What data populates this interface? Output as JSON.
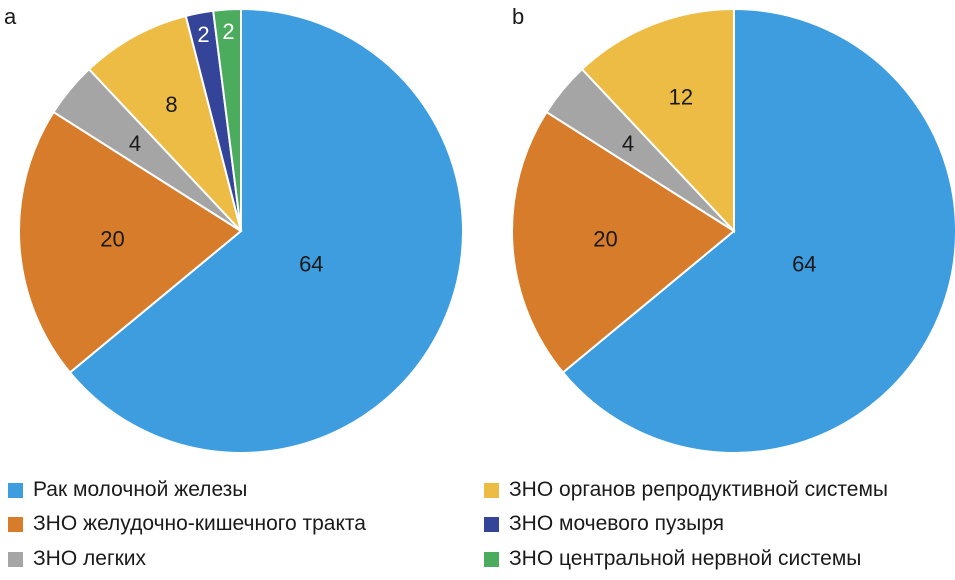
{
  "chart_data": [
    {
      "type": "pie",
      "panel": "a",
      "labels": [
        "Рак молочной железы",
        "ЗНО желудочно-кишечного тракта",
        "ЗНО легких",
        "ЗНО органов репродуктивной системы",
        "ЗНО мочевого пузыря",
        "ЗНО центральной нервной системы"
      ],
      "values": [
        64,
        20,
        4,
        8,
        2,
        2
      ],
      "value_labels": [
        "64",
        "20",
        "4",
        "8",
        "2",
        "2"
      ],
      "colors": [
        "#3d9ddf",
        "#d67c2b",
        "#a5a5a5",
        "#ecbc45",
        "#334499",
        "#4cac5d"
      ],
      "start": "12 o'clock",
      "direction": "clockwise"
    },
    {
      "type": "pie",
      "panel": "b",
      "labels": [
        "Рак молочной железы",
        "ЗНО желудочно-кишечного тракта",
        "ЗНО легких",
        "ЗНО органов репродуктивной системы"
      ],
      "values": [
        64,
        20,
        4,
        12
      ],
      "value_labels": [
        "64",
        "20",
        "4",
        "12"
      ],
      "colors": [
        "#3d9ddf",
        "#d67c2b",
        "#a5a5a5",
        "#ecbc45"
      ],
      "start": "12 o'clock",
      "direction": "clockwise"
    }
  ],
  "panels": {
    "a": "a",
    "b": "b"
  },
  "legend": {
    "placement": "bottom",
    "items": [
      {
        "label": "Рак молочной железы",
        "color": "#3d9ddf"
      },
      {
        "label": "ЗНО желудочно-кишечного тракта",
        "color": "#d67c2b"
      },
      {
        "label": "ЗНО легких",
        "color": "#a5a5a5"
      },
      {
        "label": "ЗНО органов репродуктивной системы",
        "color": "#ecbc45"
      },
      {
        "label": "ЗНО мочевого пузыря",
        "color": "#334499"
      },
      {
        "label": "ЗНО центральной нервной системы",
        "color": "#4cac5d"
      }
    ]
  }
}
